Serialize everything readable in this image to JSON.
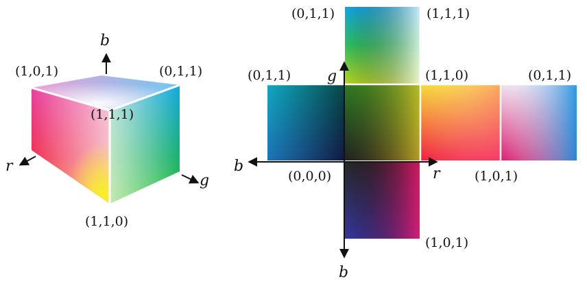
{
  "cube": {
    "axis_b": "b",
    "axis_r": "r",
    "axis_g": "g",
    "corner_top_left": "(1,0,1)",
    "corner_top_right": "(0,1,1)",
    "corner_front": "(1,1,1)",
    "corner_bottom": "(1,1,0)"
  },
  "net": {
    "axis_g": "g",
    "axis_b_left": "b",
    "axis_r": "r",
    "axis_b_bottom": "b",
    "label_top_left": "(0,1,1)",
    "label_top_right": "(1,1,1)",
    "label_left_face": "(0,1,1)",
    "label_center": "(1,1,0)",
    "label_right_face": "(0,1,1)",
    "label_origin": "(0,0,0)",
    "label_r_end": "(1,0,1)",
    "label_bottom": "(1,0,1)"
  },
  "colors": {
    "black": "#000000",
    "white": "#ffffff",
    "red": "#ff2020",
    "green": "#10b040",
    "blue": "#2828a0",
    "yellow": "#f8f020",
    "cyan": "#10a8e8",
    "magenta": "#e81890"
  }
}
